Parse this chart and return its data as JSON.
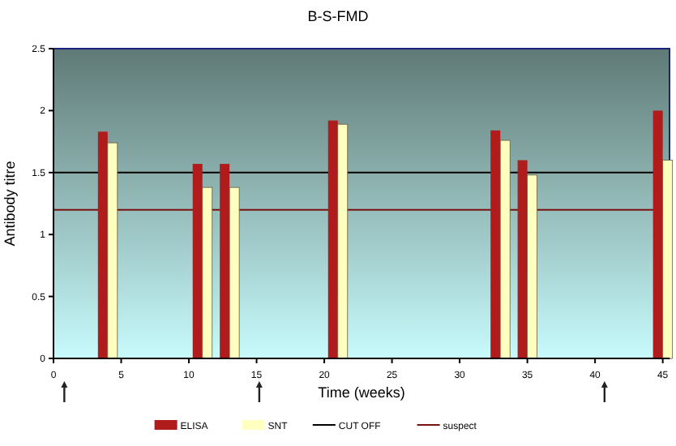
{
  "chart_data": {
    "type": "bar",
    "title": "B-S-FMD",
    "xlabel": "Time (weeks)",
    "ylabel": "Antibody titre",
    "x": [
      4,
      11,
      13,
      21,
      33,
      35,
      45
    ],
    "series": [
      {
        "name": "ELISA",
        "color": "#b01c1c",
        "values": [
          1.83,
          1.57,
          1.57,
          1.92,
          1.84,
          1.6,
          2.0
        ]
      },
      {
        "name": "SNT",
        "color": "#ffffc0",
        "values": [
          1.74,
          1.38,
          1.38,
          1.89,
          1.76,
          1.48,
          1.6
        ]
      }
    ],
    "xlim": [
      0,
      45.5
    ],
    "xticks": [
      0,
      5,
      10,
      15,
      20,
      25,
      30,
      35,
      40,
      45
    ],
    "ylim": [
      0,
      2.5
    ],
    "yticks": [
      0,
      0.5,
      1,
      1.5,
      2,
      2.5
    ],
    "ref_lines": [
      {
        "axis": "y",
        "value": 1.5,
        "label": "CUT OFF",
        "color": "#000000"
      },
      {
        "axis": "y",
        "value": 1.2,
        "label": "suspect",
        "color": "#7a1010"
      }
    ],
    "legend": "bottom",
    "grid": false
  }
}
